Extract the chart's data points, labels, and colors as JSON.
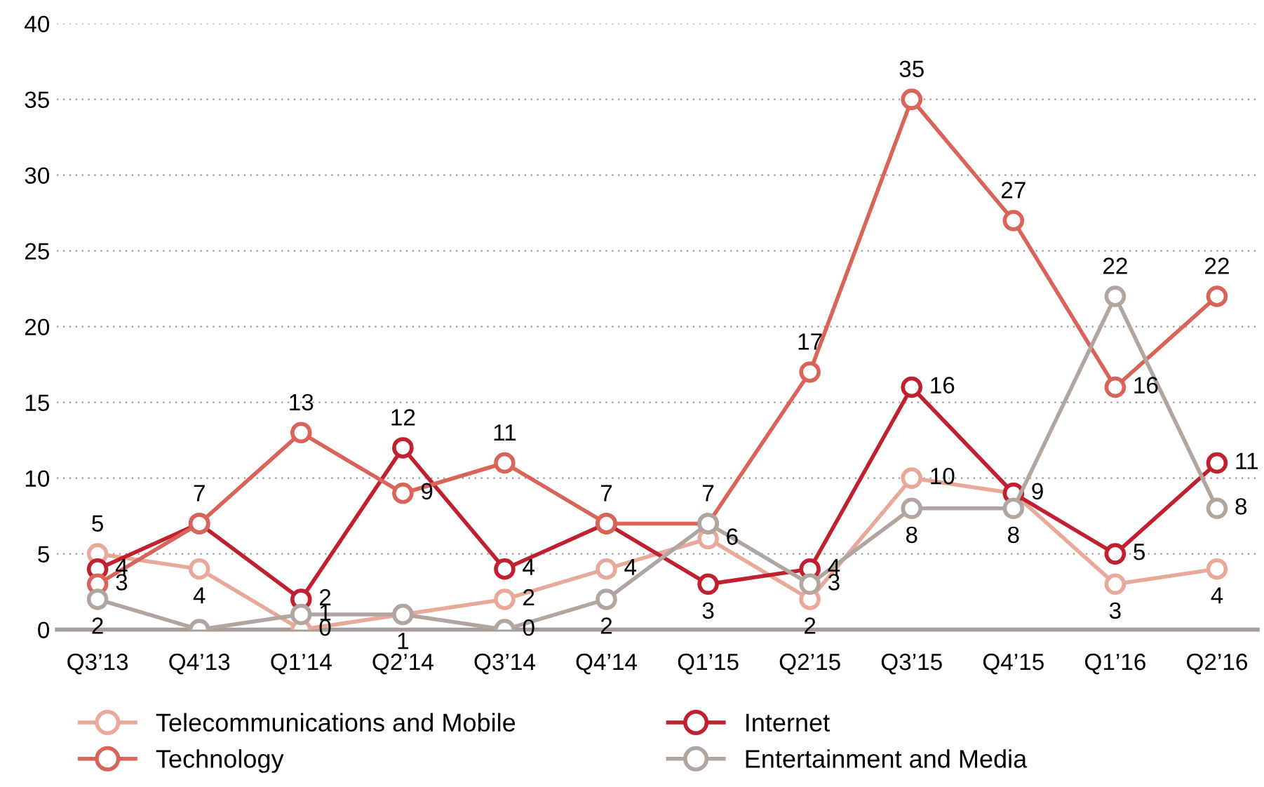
{
  "chart_data": {
    "type": "line",
    "categories": [
      "Q3’13",
      "Q4’13",
      "Q1’14",
      "Q2’14",
      "Q3’14",
      "Q4’14",
      "Q1’15",
      "Q2’15",
      "Q3’15",
      "Q4’15",
      "Q1’16",
      "Q2’16"
    ],
    "series": [
      {
        "name": "Telecommunications and Mobile",
        "color": "#e8a99a",
        "values": [
          5,
          4,
          0,
          1,
          2,
          4,
          6,
          2,
          10,
          9,
          3,
          4
        ],
        "value_labels": [
          "5",
          "4",
          "0",
          "1",
          "2",
          "4",
          "6",
          "2",
          "10",
          null,
          "3",
          "4"
        ]
      },
      {
        "name": "Internet",
        "color": "#c0202f",
        "values": [
          4,
          7,
          2,
          12,
          4,
          7,
          3,
          4,
          16,
          9,
          5,
          11
        ],
        "value_labels": [
          "4",
          null,
          "2",
          "12",
          "4",
          null,
          "3",
          "4",
          "16",
          "9",
          "5",
          "11"
        ]
      },
      {
        "name": "Technology",
        "color": "#d9645a",
        "values": [
          3,
          7,
          13,
          9,
          11,
          7,
          7,
          17,
          35,
          27,
          16,
          22
        ],
        "value_labels": [
          "3",
          "7",
          "13",
          "9",
          "11",
          "7",
          "7",
          "17",
          "35",
          "27",
          "16",
          "22"
        ]
      },
      {
        "name": "Entertainment and Media",
        "color": "#b0a59f",
        "values": [
          2,
          0,
          1,
          1,
          0,
          2,
          7,
          3,
          8,
          8,
          22,
          8
        ],
        "value_labels": [
          "2",
          null,
          "1",
          null,
          "0",
          "2",
          null,
          "3",
          "8",
          "8",
          "22",
          "8"
        ]
      }
    ],
    "ylim": [
      0,
      40
    ],
    "yticks": [
      0,
      5,
      10,
      15,
      20,
      25,
      30,
      35,
      40
    ],
    "grid": "y",
    "legend": "bottom",
    "marker": "circle",
    "line_style": "solid"
  }
}
